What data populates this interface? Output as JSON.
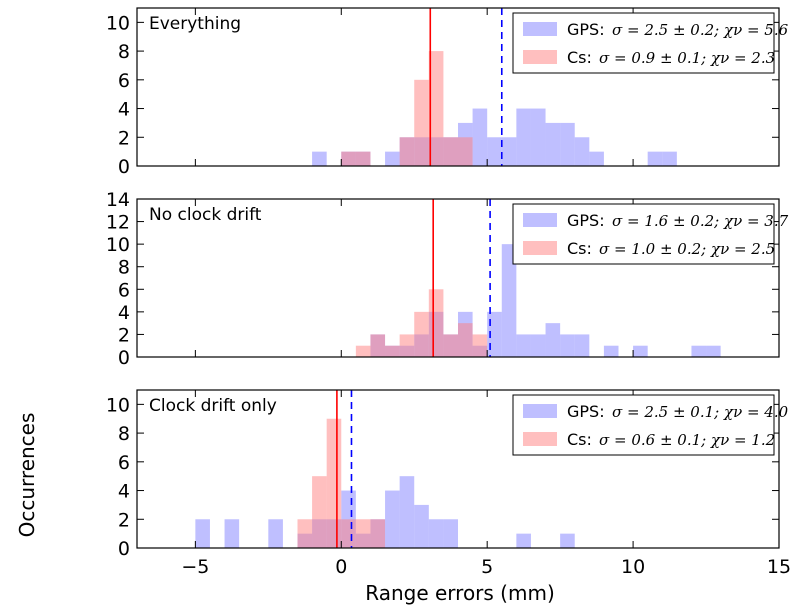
{
  "chart_data": {
    "type": "bar",
    "xlabel": "Range errors (mm)",
    "ylabel": "Occurrences",
    "xlim": [
      -7,
      15
    ],
    "xticks": [
      -5,
      0,
      5,
      10,
      15
    ],
    "bin_width": 0.5,
    "colors": {
      "gps": "#7f7fff",
      "cs": "#ff7f7f",
      "overlap": "#bf3f7f",
      "gps_mean": "#0000ff",
      "cs_mean": "#ff0000"
    },
    "panels": [
      {
        "title": "Everything",
        "ylim": [
          0,
          11
        ],
        "yticks": [
          0,
          2,
          4,
          6,
          8,
          10
        ],
        "gps_mean": 5.5,
        "cs_mean": 3.05,
        "legend": [
          {
            "name": "GPS",
            "text": "σ = 2.5 ± 0.2;  χν = 5.6"
          },
          {
            "name": "Cs",
            "text": "σ = 0.9 ± 0.1;  χν = 2.3"
          }
        ],
        "series": [
          {
            "name": "GPS",
            "bins": [
              [
                -1,
                1
              ],
              [
                0,
                1
              ],
              [
                0.5,
                1
              ],
              [
                1.5,
                1
              ],
              [
                2,
                2
              ],
              [
                2.5,
                2
              ],
              [
                3,
                2
              ],
              [
                3.5,
                2
              ],
              [
                4,
                3
              ],
              [
                4.5,
                4
              ],
              [
                5,
                2
              ],
              [
                5.5,
                2
              ],
              [
                6,
                4
              ],
              [
                6.5,
                4
              ],
              [
                7,
                3
              ],
              [
                7.5,
                3
              ],
              [
                8,
                2
              ],
              [
                8.5,
                1
              ],
              [
                10.5,
                1
              ],
              [
                11,
                1
              ]
            ]
          },
          {
            "name": "Cs",
            "bins": [
              [
                0,
                1
              ],
              [
                0.5,
                1
              ],
              [
                2,
                2
              ],
              [
                2.5,
                6
              ],
              [
                3,
                8
              ],
              [
                3.5,
                2
              ],
              [
                4,
                2
              ]
            ]
          }
        ]
      },
      {
        "title": "No clock drift",
        "ylim": [
          0,
          14
        ],
        "yticks": [
          0,
          2,
          4,
          6,
          8,
          10,
          12,
          14
        ],
        "gps_mean": 5.1,
        "cs_mean": 3.15,
        "legend": [
          {
            "name": "GPS",
            "text": "σ = 1.6 ± 0.2;  χν = 3.7"
          },
          {
            "name": "Cs",
            "text": "σ = 1.0 ± 0.2;  χν = 2.5"
          }
        ],
        "series": [
          {
            "name": "GPS",
            "bins": [
              [
                1,
                2
              ],
              [
                1.5,
                1
              ],
              [
                2,
                1
              ],
              [
                2.5,
                2
              ],
              [
                3,
                4
              ],
              [
                3.5,
                2
              ],
              [
                4,
                4
              ],
              [
                4.5,
                1
              ],
              [
                5,
                4
              ],
              [
                5.5,
                10
              ],
              [
                6,
                2
              ],
              [
                6.5,
                2
              ],
              [
                7,
                3
              ],
              [
                7.5,
                2
              ],
              [
                8,
                2
              ],
              [
                9,
                1
              ],
              [
                10,
                1
              ],
              [
                12,
                1
              ],
              [
                12.5,
                1
              ]
            ]
          },
          {
            "name": "Cs",
            "bins": [
              [
                0.5,
                1
              ],
              [
                1,
                2
              ],
              [
                1.5,
                1
              ],
              [
                2,
                2
              ],
              [
                2.5,
                4
              ],
              [
                3,
                6
              ],
              [
                3.5,
                2
              ],
              [
                4,
                3
              ],
              [
                4.5,
                2
              ]
            ]
          }
        ]
      },
      {
        "title": "Clock drift only",
        "ylim": [
          0,
          11
        ],
        "yticks": [
          0,
          2,
          4,
          6,
          8,
          10
        ],
        "gps_mean": 0.35,
        "cs_mean": -0.15,
        "legend": [
          {
            "name": "GPS",
            "text": "σ = 2.5 ± 0.1;  χν = 4.0"
          },
          {
            "name": "Cs",
            "text": "σ = 0.6 ± 0.1;  χν = 1.2"
          }
        ],
        "series": [
          {
            "name": "GPS",
            "bins": [
              [
                -5,
                2
              ],
              [
                -4,
                2
              ],
              [
                -2.5,
                2
              ],
              [
                -1.5,
                1
              ],
              [
                -1,
                2
              ],
              [
                -0.5,
                2
              ],
              [
                0,
                4
              ],
              [
                0.5,
                1
              ],
              [
                1,
                2
              ],
              [
                1.5,
                4
              ],
              [
                2,
                5
              ],
              [
                2.5,
                3
              ],
              [
                3,
                2
              ],
              [
                3.5,
                2
              ],
              [
                6,
                1
              ],
              [
                7.5,
                1
              ]
            ]
          },
          {
            "name": "Cs",
            "bins": [
              [
                -1.5,
                2
              ],
              [
                -1,
                5
              ],
              [
                -0.5,
                9
              ],
              [
                0,
                2
              ],
              [
                0.5,
                2
              ],
              [
                1,
                2
              ]
            ]
          }
        ]
      }
    ]
  }
}
